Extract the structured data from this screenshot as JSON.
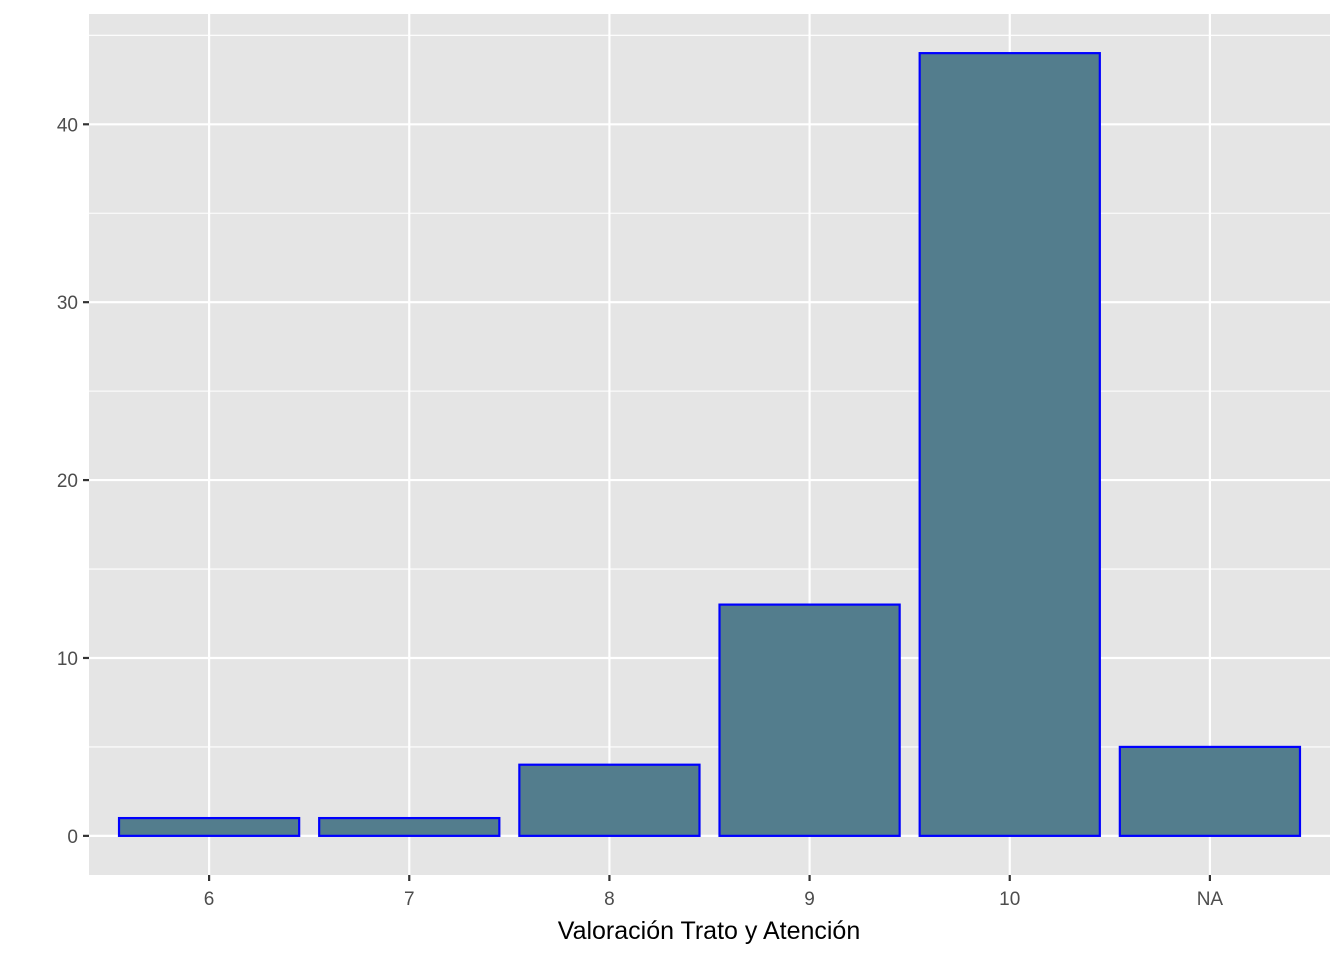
{
  "chart_data": {
    "type": "bar",
    "categories": [
      "6",
      "7",
      "8",
      "9",
      "10",
      "NA"
    ],
    "values": [
      1,
      1,
      4,
      13,
      44,
      5
    ],
    "title": "",
    "xlabel": "Valoración Trato y Atención",
    "ylabel": "",
    "ylim": [
      -2.2,
      46.2
    ],
    "yticks": [
      0,
      10,
      20,
      30,
      40
    ],
    "grid": true,
    "colors": {
      "bar_fill": "#537d8d",
      "bar_stroke": "#0000ff",
      "panel_background": "#e5e5e5",
      "grid_major": "#ffffff",
      "tick_label": "#4d4d4d"
    }
  }
}
